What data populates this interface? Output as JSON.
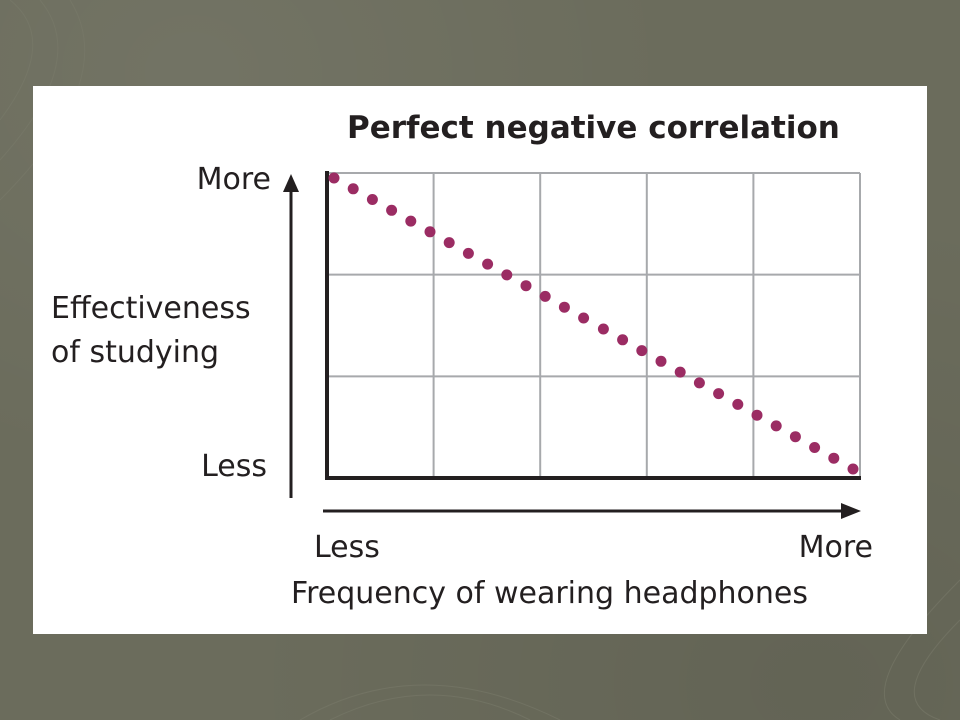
{
  "colors": {
    "slide_background": "#6b6c5c",
    "panel_background": "#ffffff",
    "grid": "#a7a9ac",
    "axis": "#231f20",
    "points": "#9b2c63"
  },
  "chart_data": {
    "type": "scatter",
    "title": "Perfect negative correlation",
    "xlabel": "Frequency of wearing headphones",
    "ylabel_lines": [
      "Effectiveness",
      "of studying"
    ],
    "x_tick_labels": [
      "Less",
      "More"
    ],
    "y_tick_labels": [
      "Less",
      "More"
    ],
    "xlim": [
      0,
      1
    ],
    "ylim": [
      0,
      1
    ],
    "grid": true,
    "grid_columns": 5,
    "grid_rows": 3,
    "point_count": 28,
    "x": [
      0,
      0.037,
      0.074,
      0.111,
      0.148,
      0.185,
      0.222,
      0.259,
      0.296,
      0.333,
      0.37,
      0.407,
      0.444,
      0.481,
      0.519,
      0.556,
      0.593,
      0.63,
      0.667,
      0.704,
      0.741,
      0.778,
      0.815,
      0.852,
      0.889,
      0.926,
      0.963,
      1
    ],
    "y": [
      1,
      0.963,
      0.926,
      0.889,
      0.852,
      0.815,
      0.778,
      0.741,
      0.704,
      0.667,
      0.63,
      0.593,
      0.556,
      0.519,
      0.481,
      0.444,
      0.407,
      0.37,
      0.333,
      0.296,
      0.259,
      0.222,
      0.185,
      0.148,
      0.111,
      0.074,
      0.037,
      0
    ]
  }
}
